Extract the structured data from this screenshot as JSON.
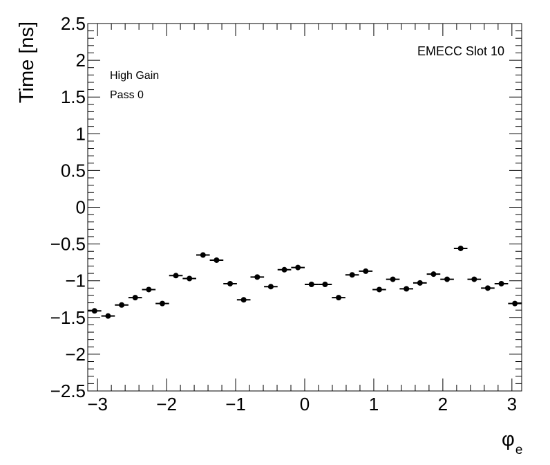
{
  "chart_data": {
    "type": "scatter",
    "title": "",
    "xlabel": "φ",
    "xlabel_sub": "e",
    "ylabel": "Time [ns]",
    "xlim": [
      -3.1416,
      3.1416
    ],
    "ylim": [
      -2.5,
      2.5
    ],
    "x_ticks": [
      -3,
      -2,
      -1,
      0,
      1,
      2,
      3
    ],
    "x_tick_labels": [
      "−3",
      "−2",
      "−1",
      "0",
      "1",
      "2",
      "3"
    ],
    "y_ticks": [
      -2.5,
      -2,
      -1.5,
      -1,
      -0.5,
      0,
      0.5,
      1,
      1.5,
      2,
      2.5
    ],
    "y_tick_labels": [
      "−2.5",
      "−2",
      "−1.5",
      "−1",
      "−0.5",
      "0",
      "0.5",
      "1",
      "1.5",
      "2",
      "2.5"
    ],
    "grid": false,
    "legend": "none",
    "annotations": {
      "slot": "EMECC Slot 10",
      "gain": "High Gain",
      "pass": "Pass 0"
    },
    "bin_width": 0.19635,
    "series": [
      {
        "marker": "circle",
        "color": "#000000",
        "x": [
          -3.0434,
          -2.8471,
          -2.6507,
          -2.4544,
          -2.258,
          -2.0617,
          -1.8653,
          -1.669,
          -1.4726,
          -1.2763,
          -1.0799,
          -0.8836,
          -0.6872,
          -0.4909,
          -0.2945,
          -0.0982,
          0.0982,
          0.2945,
          0.4909,
          0.6872,
          0.8836,
          1.0799,
          1.2763,
          1.4726,
          1.669,
          1.8653,
          2.0617,
          2.258,
          2.4544,
          2.6507,
          2.8471,
          3.0434
        ],
        "values": [
          -1.41,
          -1.48,
          -1.33,
          -1.23,
          -1.12,
          -1.31,
          -0.93,
          -0.97,
          -0.65,
          -0.72,
          -1.04,
          -1.26,
          -0.95,
          -1.08,
          -0.85,
          -0.82,
          -1.05,
          -1.05,
          -1.23,
          -0.92,
          -0.87,
          -1.12,
          -0.98,
          -1.11,
          -1.03,
          -0.91,
          -0.98,
          -0.56,
          -0.98,
          -1.1,
          -1.04,
          -1.31
        ]
      }
    ]
  }
}
